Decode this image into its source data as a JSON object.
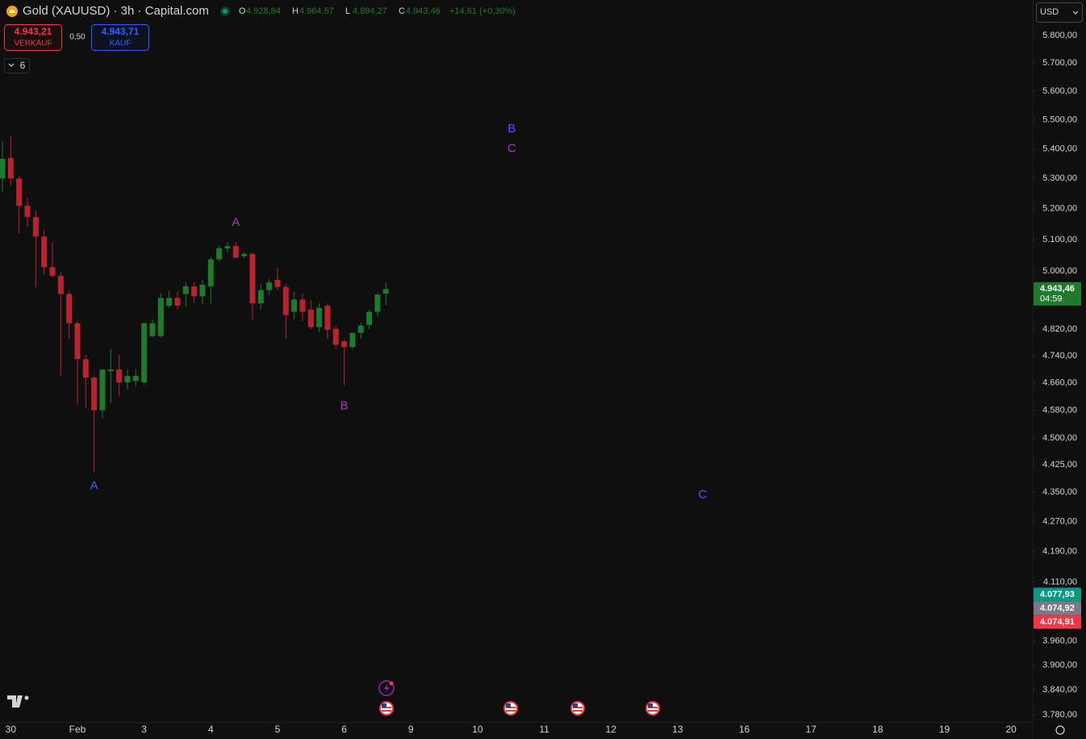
{
  "header": {
    "title": "Gold (XAUUSD) · 3h · Capital.com",
    "ohlc": [
      {
        "key": "O",
        "value": "4.928,84"
      },
      {
        "key": "H",
        "value": "4.964,57"
      },
      {
        "key": "L",
        "value": "4.894,27"
      },
      {
        "key": "C",
        "value": "4.943,46"
      }
    ],
    "change": "+14,61 (+0,30%)"
  },
  "trade": {
    "sell_price": "4.943,21",
    "sell_label": "VERKAUF",
    "spread": "0,50",
    "buy_price": "4.943,71",
    "buy_label": "KAUF"
  },
  "indicators_count": "6",
  "currency": "USD",
  "chart_data": {
    "type": "candlestick",
    "log_scale": true,
    "grid": false,
    "up_color": "#1f7a2c",
    "down_color": "#b8232f",
    "x": [
      0,
      1,
      2,
      3,
      4,
      5,
      6,
      7,
      8,
      9,
      10,
      11,
      12,
      13,
      14,
      15,
      16,
      17,
      18,
      19,
      20,
      21,
      22,
      23,
      24,
      25,
      26,
      27,
      28,
      29,
      30,
      31,
      32,
      33,
      34,
      35,
      36,
      37,
      38,
      39,
      40,
      41,
      42,
      43,
      44,
      45,
      46
    ],
    "open": [
      5300,
      5369,
      5300,
      5210,
      5173,
      5110,
      5012,
      4985,
      4928,
      4838,
      4730,
      4675,
      4580,
      4694,
      4699,
      4661,
      4665,
      4661,
      4799,
      4799,
      4892,
      4916,
      4928,
      4952,
      4921,
      4952,
      5037,
      5072,
      5079,
      5047,
      5054,
      4899,
      4940,
      4972,
      4950,
      4873,
      4911,
      4880,
      4826,
      4892,
      4821,
      4783,
      4766,
      4809,
      4833,
      4873,
      4928.84
    ],
    "high": [
      5426,
      5446,
      5307,
      5235,
      5195,
      5130,
      5092,
      4997,
      4940,
      4845,
      4742,
      4682,
      4699,
      4760,
      4742,
      4700,
      4700,
      4840,
      4850,
      4930,
      4938,
      4935,
      4965,
      4965,
      4972,
      5045,
      5080,
      5090,
      5092,
      5060,
      5058,
      4960,
      4975,
      5010,
      4960,
      4935,
      4930,
      4910,
      4900,
      4900,
      4830,
      4790,
      4800,
      4840,
      4880,
      4930,
      4964.57
    ],
    "low": [
      5257,
      5276,
      5120,
      5142,
      4950,
      4990,
      4979,
      4682,
      4790,
      4598,
      4587,
      4404,
      4557,
      4600,
      4620,
      4640,
      4650,
      4655,
      4795,
      4795,
      4885,
      4880,
      4890,
      4900,
      4895,
      4900,
      5030,
      5060,
      5040,
      5040,
      4850,
      4880,
      4925,
      4940,
      4790,
      4850,
      4845,
      4820,
      4810,
      4790,
      4760,
      4652,
      4760,
      4790,
      4820,
      4860,
      4894.27
    ],
    "close": [
      5366,
      5300,
      5210,
      5173,
      5110,
      5012,
      4985,
      4928,
      4838,
      4730,
      4675,
      4580,
      4699,
      4699,
      4661,
      4680,
      4680,
      4838,
      4838,
      4916,
      4916,
      4892,
      4952,
      4921,
      4957,
      5037,
      5072,
      5079,
      5042,
      5054,
      4899,
      4940,
      4964,
      4950,
      4863,
      4911,
      4873,
      4826,
      4885,
      4818,
      4773,
      4766,
      4809,
      4831,
      4873,
      4926,
      4943.46
    ],
    "xlim": [
      -0.29,
      123.6
    ],
    "xticks": [
      {
        "value": 1,
        "label": "30"
      },
      {
        "value": 9,
        "label": "Feb"
      },
      {
        "value": 17,
        "label": "3"
      },
      {
        "value": 25,
        "label": "4"
      },
      {
        "value": 33,
        "label": "5"
      },
      {
        "value": 41,
        "label": "6"
      },
      {
        "value": 49,
        "label": "9"
      },
      {
        "value": 57,
        "label": "10"
      },
      {
        "value": 65,
        "label": "11"
      },
      {
        "value": 73,
        "label": "12"
      },
      {
        "value": 81,
        "label": "13"
      },
      {
        "value": 89,
        "label": "16"
      },
      {
        "value": 97,
        "label": "17"
      },
      {
        "value": 105,
        "label": "18"
      },
      {
        "value": 113,
        "label": "19"
      },
      {
        "value": 121,
        "label": "20"
      }
    ],
    "ylim": [
      3763,
      5931
    ],
    "yticks": [
      {
        "value": 5800,
        "label": "5.800,00"
      },
      {
        "value": 5700,
        "label": "5.700,00"
      },
      {
        "value": 5600,
        "label": "5.600,00"
      },
      {
        "value": 5500,
        "label": "5.500,00"
      },
      {
        "value": 5400,
        "label": "5.400,00"
      },
      {
        "value": 5300,
        "label": "5.300,00"
      },
      {
        "value": 5200,
        "label": "5.200,00"
      },
      {
        "value": 5100,
        "label": "5.100,00"
      },
      {
        "value": 5000,
        "label": "5.000,00"
      },
      {
        "value": 4820,
        "label": "4.820,00"
      },
      {
        "value": 4740,
        "label": "4.740,00"
      },
      {
        "value": 4660,
        "label": "4.660,00"
      },
      {
        "value": 4580,
        "label": "4.580,00"
      },
      {
        "value": 4500,
        "label": "4.500,00"
      },
      {
        "value": 4425,
        "label": "4.425,00"
      },
      {
        "value": 4350,
        "label": "4.350,00"
      },
      {
        "value": 4270,
        "label": "4.270,00"
      },
      {
        "value": 4190,
        "label": "4.190,00"
      },
      {
        "value": 4110,
        "label": "4.110,00"
      },
      {
        "value": 3960,
        "label": "3.960,00"
      },
      {
        "value": 3900,
        "label": "3.900,00"
      },
      {
        "value": 3840,
        "label": "3.840,00"
      },
      {
        "value": 3780,
        "label": "3.780,00"
      }
    ],
    "price_labels": [
      {
        "value": 4943.46,
        "label": "4.943,46",
        "sub": "04:59",
        "color": "#1f7a2c"
      },
      {
        "value": 4077.93,
        "label": "4.077,93",
        "color": "#089981"
      },
      {
        "value": 4074.92,
        "label": "4.074,92",
        "color": "#787b86"
      },
      {
        "value": 4074.91,
        "label": "4.074,91",
        "color": "#f23645"
      }
    ],
    "annotations": [
      {
        "text": "A",
        "x": 11,
        "y": 4366,
        "color": "#3861f6"
      },
      {
        "text": "A",
        "x": 28,
        "y": 5154,
        "color": "#a23bc2"
      },
      {
        "text": "B",
        "x": 41,
        "y": 4591,
        "color": "#a23bc2"
      },
      {
        "text": "B",
        "x": 61.1,
        "y": 5468,
        "color": "#3861f6"
      },
      {
        "text": "C",
        "x": 61.1,
        "y": 5400,
        "color": "#a23bc2"
      },
      {
        "text": "C",
        "x": 84,
        "y": 4342,
        "color": "#3861f6"
      }
    ]
  }
}
